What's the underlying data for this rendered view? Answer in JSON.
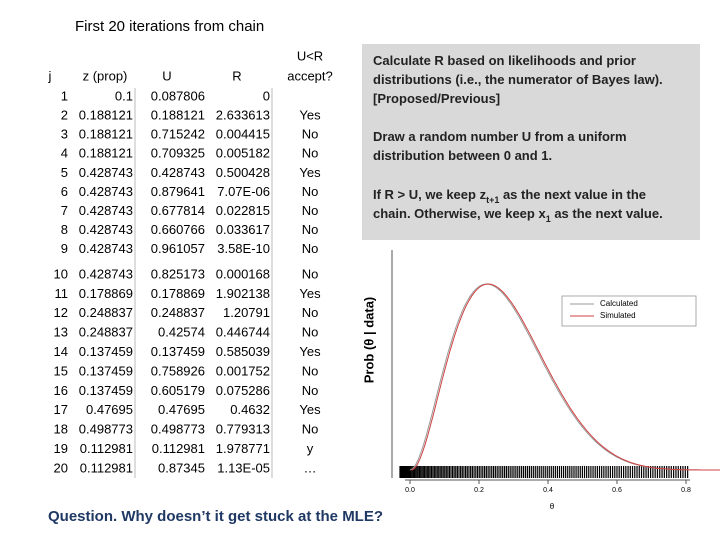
{
  "title": "First 20 iterations from chain",
  "table": {
    "header": [
      "j",
      "z (prop)",
      "U",
      "R",
      [
        "U<R",
        "accept?"
      ]
    ],
    "highlight_color": "#c00000",
    "rows": [
      {
        "cells": [
          "1",
          "0.1",
          "0.087806",
          "0"
        ]
      },
      {
        "cells": [
          "2",
          "0.188121",
          "0.188121",
          "2.633613",
          "Yes"
        ],
        "highlight": true
      },
      {
        "cells": [
          "3",
          "0.188121",
          "0.715242",
          "0.004415",
          "No"
        ]
      },
      {
        "cells": [
          "4",
          "0.188121",
          "0.709325",
          "0.005182",
          "No"
        ]
      },
      {
        "cells": [
          "5",
          "0.428743",
          "0.428743",
          "0.500428",
          "Yes"
        ],
        "highlight": true
      },
      {
        "cells": [
          "6",
          "0.428743",
          "0.879641",
          "7.07E-06",
          "No"
        ]
      },
      {
        "cells": [
          "7",
          "0.428743",
          "0.677814",
          "0.022815",
          "No"
        ]
      },
      {
        "cells": [
          "8",
          "0.428743",
          "0.660766",
          "0.033617",
          "No"
        ]
      },
      {
        "cells": [
          "9",
          "0.428743",
          "0.961057",
          "3.58E-10",
          "No"
        ]
      },
      {
        "cells": [
          "10",
          "0.428743",
          "0.825173",
          "0.000168",
          "No"
        ]
      },
      {
        "cells": [
          "11",
          "0.178869",
          "0.178869",
          "1.902138",
          "Yes"
        ],
        "highlight": true
      },
      {
        "cells": [
          "12",
          "0.248837",
          "0.248837",
          "1.20791",
          "No"
        ]
      },
      {
        "cells": [
          "13",
          "0.248837",
          "0.42574",
          "0.446744",
          "No"
        ]
      },
      {
        "cells": [
          "14",
          "0.137459",
          "0.137459",
          "0.585039",
          "Yes"
        ],
        "highlight": true
      },
      {
        "cells": [
          "15",
          "0.137459",
          "0.758926",
          "0.001752",
          "No"
        ]
      },
      {
        "cells": [
          "16",
          "0.137459",
          "0.605179",
          "0.075286",
          "No"
        ]
      },
      {
        "cells": [
          "17",
          "0.47695",
          "0.47695",
          "0.4632",
          "Yes"
        ],
        "highlight": true
      },
      {
        "cells": [
          "18",
          "0.498773",
          "0.498773",
          "0.779313",
          "No"
        ]
      },
      {
        "cells": [
          "19",
          "0.112981",
          "0.112981",
          "1.978771",
          "y"
        ],
        "highlight": true
      },
      {
        "cells": [
          "20",
          "0.112981",
          "0.87345",
          "1.13E-05",
          "…"
        ]
      }
    ]
  },
  "notes": [
    {
      "lines": [
        [
          {
            "text": "Calculate R based on likelihoods and prior"
          }
        ],
        [
          {
            "text": "distributions (i.e., the numerator of Bayes law)."
          }
        ],
        [
          {
            "text": "[Proposed/Previous]"
          }
        ]
      ]
    },
    {
      "lines": [
        [
          {
            "text": "Draw a random number U from a uniform"
          }
        ],
        [
          {
            "text": "distribution between 0 and 1."
          }
        ]
      ]
    },
    {
      "lines": [
        [
          {
            "text": "If R > U, we keep z"
          },
          {
            "text": "t+1",
            "sub": true
          },
          {
            "text": " as  the next value in the"
          }
        ],
        [
          {
            "text": "chain. Otherwise, we keep x"
          },
          {
            "text": "1",
            "sub": true
          },
          {
            "text": " as the next value."
          }
        ]
      ]
    }
  ],
  "plot": {
    "ylabel": "Prob (θ | data)",
    "xlabel": "θ",
    "xlim": [
      0,
      0.8
    ],
    "xticks": [
      {
        "value": 0,
        "label": "0.0"
      },
      {
        "value": 0.2,
        "label": "0.2"
      },
      {
        "value": 0.4,
        "label": "0.4"
      },
      {
        "value": 0.6,
        "label": "0.6"
      },
      {
        "value": 0.8,
        "label": "0.8"
      }
    ],
    "legend": [
      {
        "name": "Calculated",
        "color": "#999999"
      },
      {
        "name": "Simulated",
        "color": "#d04040"
      }
    ]
  },
  "question": "Question. Why doesn’t it get stuck at the MLE?"
}
